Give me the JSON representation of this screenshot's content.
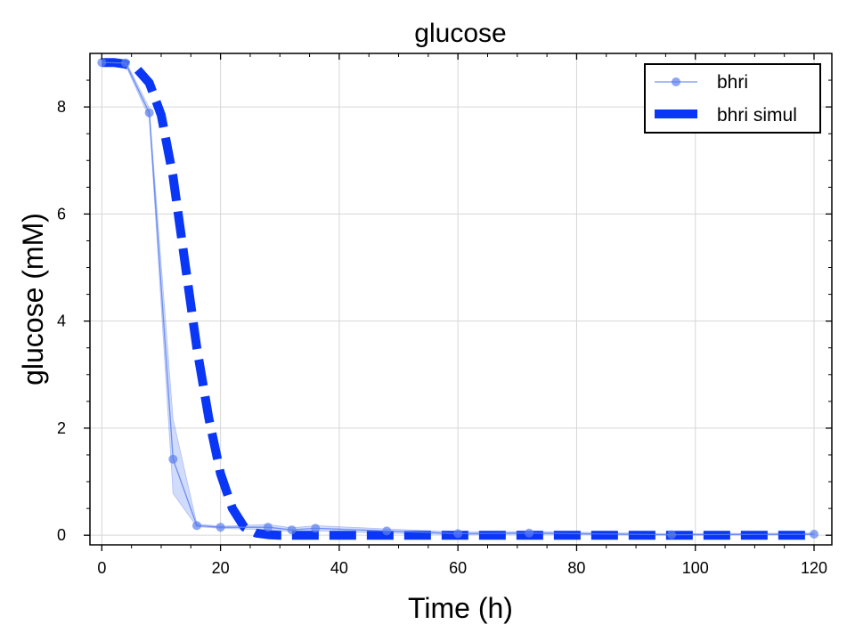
{
  "chart_data": {
    "type": "line",
    "title": "glucose",
    "xlabel": "Time (h)",
    "ylabel": "glucose (mM)",
    "xlim": [
      -2,
      123
    ],
    "ylim": [
      -0.18,
      9.0
    ],
    "x_ticks": [
      0,
      20,
      40,
      60,
      80,
      100,
      120
    ],
    "y_ticks": [
      0,
      2,
      4,
      6,
      8
    ],
    "x_tick_labels": [
      "0",
      "20",
      "40",
      "60",
      "80",
      "100",
      "120"
    ],
    "y_tick_labels": [
      "0",
      "2",
      "4",
      "6",
      "8"
    ],
    "grid": true,
    "legend_position": "top-right",
    "series": [
      {
        "name": "bhri",
        "style": "line-with-markers",
        "color": "#5b7ff0",
        "x": [
          0,
          4,
          8,
          12,
          16,
          20,
          28,
          32,
          36,
          48,
          60,
          72,
          96,
          120
        ],
        "y": [
          8.83,
          8.82,
          7.89,
          1.42,
          0.18,
          0.15,
          0.15,
          0.1,
          0.13,
          0.08,
          0.03,
          0.04,
          0.01,
          0.02
        ],
        "band_low": [
          8.8,
          8.78,
          7.8,
          0.78,
          0.16,
          0.13,
          0.1,
          0.07,
          0.08,
          0.04,
          0.01,
          0.02,
          0.0,
          0.01
        ],
        "band_high": [
          8.86,
          8.86,
          7.98,
          2.17,
          0.21,
          0.17,
          0.2,
          0.14,
          0.18,
          0.12,
          0.06,
          0.07,
          0.03,
          0.04
        ]
      },
      {
        "name": "bhri simul",
        "style": "dashed",
        "color": "#0a36f5",
        "x": [
          0,
          2,
          4,
          6,
          8,
          10,
          12,
          14,
          16,
          18,
          20,
          22,
          24,
          26,
          28,
          30,
          40,
          60,
          80,
          100,
          120
        ],
        "y": [
          8.83,
          8.83,
          8.8,
          8.7,
          8.45,
          7.85,
          6.7,
          5.1,
          3.5,
          2.2,
          1.15,
          0.5,
          0.15,
          0.04,
          0.01,
          0.0,
          0.0,
          0.0,
          0.0,
          0.0,
          0.0
        ]
      }
    ]
  }
}
